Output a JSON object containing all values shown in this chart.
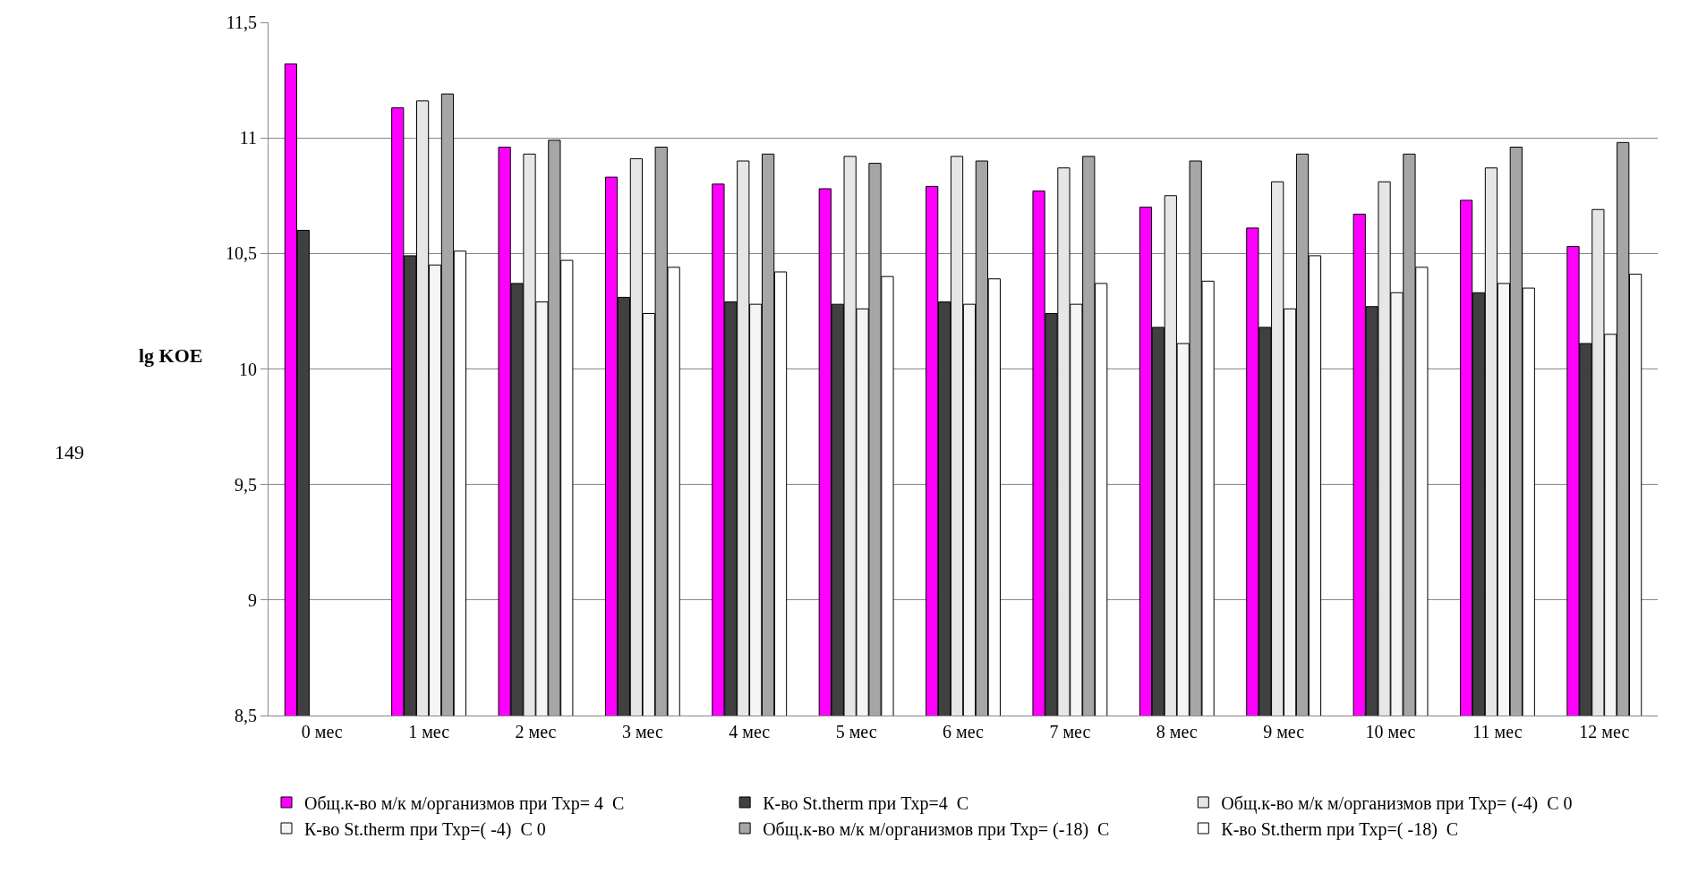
{
  "chart_data": {
    "type": "bar",
    "ylabel": "lg KOE",
    "categories": [
      "0 мес",
      "1 мес",
      "2 мес",
      "3 мес",
      "4 мес",
      "5 мес",
      "6 мес",
      "7 мес",
      "8 мес",
      "9 мес",
      "10 мес",
      "11 мес",
      "12 мес"
    ],
    "series": [
      {
        "name": "Общ.к-во м/к м/организмов при Тхр= 4  С",
        "color": "#ff00ff",
        "values": [
          11.32,
          11.13,
          10.96,
          10.83,
          10.8,
          10.78,
          10.79,
          10.77,
          10.7,
          10.61,
          10.67,
          10.73,
          10.53
        ]
      },
      {
        "name": "К-во St.therm при Тхр=4  С",
        "color": "#404040",
        "values": [
          10.6,
          10.49,
          10.37,
          10.31,
          10.29,
          10.28,
          10.29,
          10.24,
          10.18,
          10.18,
          10.27,
          10.33,
          10.11
        ]
      },
      {
        "name": "Общ.к-во м/к м/организмов при Тхр= (-4)  С 0",
        "color": "#e6e6e6",
        "values": [
          null,
          11.16,
          10.93,
          10.91,
          10.9,
          10.92,
          10.92,
          10.87,
          10.75,
          10.81,
          10.81,
          10.87,
          10.69
        ]
      },
      {
        "name": "К-во St.therm при Тхр=( -4)  С 0",
        "color": "#f5f5f5",
        "values": [
          null,
          10.45,
          10.29,
          10.24,
          10.28,
          10.26,
          10.28,
          10.28,
          10.11,
          10.26,
          10.33,
          10.37,
          10.15
        ]
      },
      {
        "name": "Общ.к-во м/к м/организмов при Тхр= (-18)  С",
        "color": "#a6a6a6",
        "values": [
          null,
          11.19,
          10.99,
          10.96,
          10.93,
          10.89,
          10.9,
          10.92,
          10.9,
          10.93,
          10.93,
          10.96,
          10.98
        ]
      },
      {
        "name": "К-во St.therm при Тхр=( -18)  С",
        "color": "#ffffff",
        "values": [
          null,
          10.51,
          10.47,
          10.44,
          10.42,
          10.4,
          10.39,
          10.37,
          10.38,
          10.49,
          10.44,
          10.35,
          10.41
        ]
      }
    ],
    "ylim": [
      8.5,
      11.5
    ],
    "yticks": [
      {
        "value": 8.5,
        "label": "8,5"
      },
      9,
      {
        "value": 9.5,
        "label": "9,5"
      },
      10,
      {
        "value": 10.5,
        "label": "10,5"
      },
      11,
      {
        "value": 11.5,
        "label": "11,5"
      }
    ],
    "grid": "y",
    "legend": "bottom",
    "annotations": [
      "149"
    ]
  }
}
